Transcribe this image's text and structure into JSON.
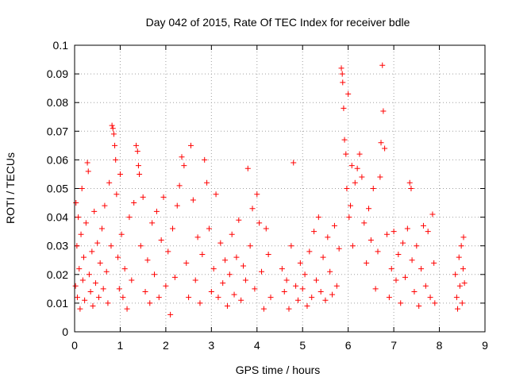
{
  "chart_data": {
    "type": "scatter",
    "title": "Day 042 of 2015, Rate Of TEC Index for receiver bdle",
    "xlabel": "GPS time / hours",
    "ylabel": "ROTI / TECUs",
    "xlim": [
      0,
      9
    ],
    "ylim": [
      0,
      0.1
    ],
    "x_ticks": [
      "0",
      "1",
      "2",
      "3",
      "4",
      "5",
      "6",
      "7",
      "8",
      "9"
    ],
    "y_ticks": [
      "0",
      "0.01",
      "0.02",
      "0.03",
      "0.04",
      "0.05",
      "0.06",
      "0.07",
      "0.08",
      "0.09",
      "0.1"
    ],
    "grid": true,
    "marker": "+",
    "color": "#ff0000",
    "series": [
      {
        "name": "ROTI",
        "points": [
          [
            0.02,
            0.016
          ],
          [
            0.03,
            0.045
          ],
          [
            0.05,
            0.03
          ],
          [
            0.06,
            0.012
          ],
          [
            0.08,
            0.04
          ],
          [
            0.1,
            0.022
          ],
          [
            0.12,
            0.008
          ],
          [
            0.14,
            0.034
          ],
          [
            0.16,
            0.05
          ],
          [
            0.18,
            0.018
          ],
          [
            0.2,
            0.026
          ],
          [
            0.22,
            0.011
          ],
          [
            0.25,
            0.038
          ],
          [
            0.28,
            0.059
          ],
          [
            0.3,
            0.056
          ],
          [
            0.32,
            0.02
          ],
          [
            0.35,
            0.014
          ],
          [
            0.38,
            0.028
          ],
          [
            0.4,
            0.009
          ],
          [
            0.43,
            0.042
          ],
          [
            0.46,
            0.017
          ],
          [
            0.5,
            0.031
          ],
          [
            0.53,
            0.012
          ],
          [
            0.56,
            0.024
          ],
          [
            0.6,
            0.036
          ],
          [
            0.63,
            0.015
          ],
          [
            0.66,
            0.044
          ],
          [
            0.7,
            0.021
          ],
          [
            0.73,
            0.01
          ],
          [
            0.76,
            0.052
          ],
          [
            0.8,
            0.03
          ],
          [
            0.82,
            0.072
          ],
          [
            0.84,
            0.071
          ],
          [
            0.86,
            0.069
          ],
          [
            0.88,
            0.065
          ],
          [
            0.9,
            0.06
          ],
          [
            0.92,
            0.048
          ],
          [
            0.95,
            0.026
          ],
          [
            0.98,
            0.015
          ],
          [
            1.0,
            0.055
          ],
          [
            1.03,
            0.034
          ],
          [
            1.06,
            0.012
          ],
          [
            1.1,
            0.022
          ],
          [
            1.15,
            0.008
          ],
          [
            1.2,
            0.04
          ],
          [
            1.25,
            0.018
          ],
          [
            1.3,
            0.045
          ],
          [
            1.35,
            0.065
          ],
          [
            1.38,
            0.063
          ],
          [
            1.4,
            0.058
          ],
          [
            1.42,
            0.055
          ],
          [
            1.45,
            0.03
          ],
          [
            1.5,
            0.047
          ],
          [
            1.55,
            0.014
          ],
          [
            1.6,
            0.025
          ],
          [
            1.65,
            0.01
          ],
          [
            1.7,
            0.038
          ],
          [
            1.75,
            0.02
          ],
          [
            1.8,
            0.042
          ],
          [
            1.85,
            0.012
          ],
          [
            1.9,
            0.032
          ],
          [
            1.95,
            0.047
          ],
          [
            2.0,
            0.016
          ],
          [
            2.05,
            0.028
          ],
          [
            2.1,
            0.006
          ],
          [
            2.15,
            0.036
          ],
          [
            2.2,
            0.019
          ],
          [
            2.25,
            0.044
          ],
          [
            2.3,
            0.051
          ],
          [
            2.35,
            0.061
          ],
          [
            2.4,
            0.058
          ],
          [
            2.45,
            0.024
          ],
          [
            2.5,
            0.012
          ],
          [
            2.55,
            0.065
          ],
          [
            2.6,
            0.046
          ],
          [
            2.65,
            0.018
          ],
          [
            2.7,
            0.033
          ],
          [
            2.75,
            0.01
          ],
          [
            2.8,
            0.027
          ],
          [
            2.85,
            0.06
          ],
          [
            2.9,
            0.052
          ],
          [
            2.95,
            0.036
          ],
          [
            3.0,
            0.014
          ],
          [
            3.05,
            0.022
          ],
          [
            3.1,
            0.048
          ],
          [
            3.15,
            0.012
          ],
          [
            3.2,
            0.031
          ],
          [
            3.25,
            0.017
          ],
          [
            3.3,
            0.025
          ],
          [
            3.35,
            0.009
          ],
          [
            3.4,
            0.02
          ],
          [
            3.45,
            0.034
          ],
          [
            3.5,
            0.013
          ],
          [
            3.55,
            0.026
          ],
          [
            3.6,
            0.039
          ],
          [
            3.65,
            0.011
          ],
          [
            3.7,
            0.023
          ],
          [
            3.75,
            0.018
          ],
          [
            3.8,
            0.057
          ],
          [
            3.85,
            0.03
          ],
          [
            3.9,
            0.043
          ],
          [
            3.95,
            0.015
          ],
          [
            4.0,
            0.048
          ],
          [
            4.05,
            0.038
          ],
          [
            4.1,
            0.021
          ],
          [
            4.15,
            0.008
          ],
          [
            4.2,
            0.036
          ],
          [
            4.25,
            0.027
          ],
          [
            4.3,
            0.012
          ],
          [
            4.55,
            0.022
          ],
          [
            4.6,
            0.014
          ],
          [
            4.65,
            0.018
          ],
          [
            4.7,
            0.008
          ],
          [
            4.75,
            0.03
          ],
          [
            4.8,
            0.059
          ],
          [
            4.85,
            0.016
          ],
          [
            4.9,
            0.011
          ],
          [
            4.95,
            0.024
          ],
          [
            5.0,
            0.015
          ],
          [
            5.05,
            0.02
          ],
          [
            5.1,
            0.009
          ],
          [
            5.15,
            0.028
          ],
          [
            5.2,
            0.012
          ],
          [
            5.25,
            0.035
          ],
          [
            5.3,
            0.018
          ],
          [
            5.35,
            0.04
          ],
          [
            5.4,
            0.014
          ],
          [
            5.45,
            0.026
          ],
          [
            5.5,
            0.011
          ],
          [
            5.55,
            0.033
          ],
          [
            5.6,
            0.021
          ],
          [
            5.65,
            0.013
          ],
          [
            5.7,
            0.037
          ],
          [
            5.75,
            0.016
          ],
          [
            5.8,
            0.029
          ],
          [
            5.85,
            0.092
          ],
          [
            5.87,
            0.09
          ],
          [
            5.88,
            0.087
          ],
          [
            5.9,
            0.078
          ],
          [
            5.92,
            0.067
          ],
          [
            5.95,
            0.062
          ],
          [
            5.97,
            0.05
          ],
          [
            6.0,
            0.083
          ],
          [
            6.02,
            0.04
          ],
          [
            6.05,
            0.044
          ],
          [
            6.08,
            0.058
          ],
          [
            6.1,
            0.03
          ],
          [
            6.15,
            0.052
          ],
          [
            6.2,
            0.057
          ],
          [
            6.25,
            0.062
          ],
          [
            6.3,
            0.054
          ],
          [
            6.35,
            0.038
          ],
          [
            6.4,
            0.024
          ],
          [
            6.45,
            0.043
          ],
          [
            6.5,
            0.032
          ],
          [
            6.55,
            0.05
          ],
          [
            6.6,
            0.015
          ],
          [
            6.65,
            0.028
          ],
          [
            6.7,
            0.054
          ],
          [
            6.72,
            0.066
          ],
          [
            6.75,
            0.093
          ],
          [
            6.77,
            0.077
          ],
          [
            6.8,
            0.064
          ],
          [
            6.85,
            0.034
          ],
          [
            6.9,
            0.012
          ],
          [
            6.95,
            0.022
          ],
          [
            7.0,
            0.035
          ],
          [
            7.05,
            0.018
          ],
          [
            7.1,
            0.027
          ],
          [
            7.15,
            0.01
          ],
          [
            7.2,
            0.031
          ],
          [
            7.25,
            0.019
          ],
          [
            7.3,
            0.036
          ],
          [
            7.35,
            0.052
          ],
          [
            7.38,
            0.05
          ],
          [
            7.4,
            0.025
          ],
          [
            7.45,
            0.014
          ],
          [
            7.5,
            0.03
          ],
          [
            7.55,
            0.009
          ],
          [
            7.6,
            0.022
          ],
          [
            7.65,
            0.037
          ],
          [
            7.7,
            0.016
          ],
          [
            7.75,
            0.035
          ],
          [
            7.8,
            0.012
          ],
          [
            7.85,
            0.041
          ],
          [
            7.88,
            0.024
          ],
          [
            7.9,
            0.01
          ],
          [
            8.35,
            0.02
          ],
          [
            8.38,
            0.012
          ],
          [
            8.4,
            0.008
          ],
          [
            8.43,
            0.026
          ],
          [
            8.45,
            0.016
          ],
          [
            8.48,
            0.03
          ],
          [
            8.5,
            0.01
          ],
          [
            8.52,
            0.022
          ],
          [
            8.53,
            0.033
          ],
          [
            8.55,
            0.017
          ]
        ]
      }
    ]
  }
}
